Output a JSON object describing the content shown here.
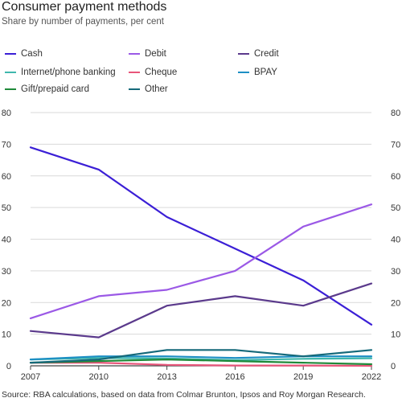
{
  "title": "Consumer payment methods",
  "subtitle": "Share by number of payments, per cent",
  "source": "Source:   RBA calculations, based on data from Colmar Brunton, Ipsos and Roy Morgan Research.",
  "chart_data": {
    "type": "line",
    "title": "Consumer payment methods",
    "subtitle": "Share by number of payments, per cent",
    "xlabel": "",
    "ylabel": "",
    "ylim": [
      0,
      80
    ],
    "y_ticks": [
      "0",
      "10",
      "20",
      "30",
      "40",
      "50",
      "60",
      "70",
      "80"
    ],
    "x": [
      "2007",
      "2010",
      "2013",
      "2016",
      "2019",
      "2022"
    ],
    "grid": true,
    "legend_position": "top",
    "series": [
      {
        "name": "Cash",
        "color": "#3b1fd6",
        "values": [
          69,
          62,
          47,
          37,
          27,
          13
        ]
      },
      {
        "name": "Debit",
        "color": "#9b59e6",
        "values": [
          15,
          22,
          24,
          30,
          44,
          51
        ]
      },
      {
        "name": "Credit",
        "color": "#5b3a8c",
        "values": [
          11,
          9,
          19,
          22,
          19,
          26
        ]
      },
      {
        "name": "Internet/phone banking",
        "color": "#3fb7ad",
        "values": [
          2,
          2.5,
          2.3,
          1.8,
          2.2,
          2.4
        ]
      },
      {
        "name": "Cheque",
        "color": "#e8557a",
        "values": [
          1,
          1,
          0.3,
          0.1,
          0.1,
          0
        ]
      },
      {
        "name": "BPAY",
        "color": "#1d8fc4",
        "values": [
          2,
          3,
          3,
          2.5,
          3,
          3
        ]
      },
      {
        "name": "Gift/prepaid card",
        "color": "#1f8a3a",
        "values": [
          1,
          1.5,
          2,
          1.5,
          1,
          0.5
        ]
      },
      {
        "name": "Other",
        "color": "#15697a",
        "values": [
          1,
          2,
          5,
          5,
          3,
          5
        ]
      }
    ]
  }
}
